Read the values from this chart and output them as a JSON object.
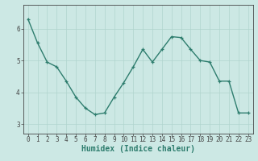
{
  "x": [
    0,
    1,
    2,
    3,
    4,
    5,
    6,
    7,
    8,
    9,
    10,
    11,
    12,
    13,
    14,
    15,
    16,
    17,
    18,
    19,
    20,
    21,
    22,
    23
  ],
  "y": [
    6.3,
    5.55,
    4.95,
    4.8,
    4.35,
    3.85,
    3.5,
    3.3,
    3.35,
    3.85,
    4.3,
    4.8,
    5.35,
    4.95,
    5.35,
    5.75,
    5.72,
    5.35,
    5.0,
    4.95,
    4.35,
    4.35,
    3.35,
    3.35
  ],
  "line_color": "#2e7d6e",
  "marker": "+",
  "marker_size": 3.5,
  "line_width": 1.0,
  "bg_color": "#cce8e4",
  "grid_color": "#b0d4ce",
  "xlabel": "Humidex (Indice chaleur)",
  "ylim": [
    2.7,
    6.75
  ],
  "xlim": [
    -0.5,
    23.5
  ],
  "yticks": [
    3,
    4,
    5,
    6
  ],
  "xticks": [
    0,
    1,
    2,
    3,
    4,
    5,
    6,
    7,
    8,
    9,
    10,
    11,
    12,
    13,
    14,
    15,
    16,
    17,
    18,
    19,
    20,
    21,
    22,
    23
  ],
  "tick_fontsize": 5.5,
  "xlabel_fontsize": 7.0,
  "axis_color": "#444444"
}
